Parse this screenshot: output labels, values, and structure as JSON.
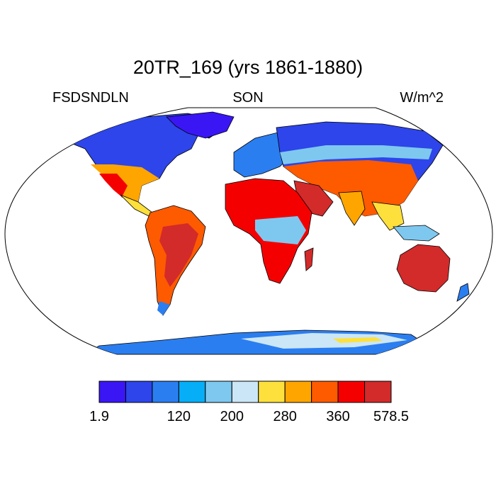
{
  "title": "20TR_169 (yrs 1861-1880)",
  "left_label": "FSDSNDLN",
  "center_label": "SON",
  "right_label": "W/m^2",
  "map": {
    "projection": "robinson",
    "ocean_color": "#ffffff",
    "coastline_color": "#000000"
  },
  "colorbar": {
    "colors": [
      "#3a16f5",
      "#2d45ea",
      "#2b7ef0",
      "#06aef7",
      "#7ec8f0",
      "#cbe6f6",
      "#fde03c",
      "#fea500",
      "#fe5a00",
      "#f50000",
      "#d32a2a"
    ],
    "tick_labels": [
      "1.9",
      "120",
      "200",
      "280",
      "360",
      "578.5"
    ]
  }
}
